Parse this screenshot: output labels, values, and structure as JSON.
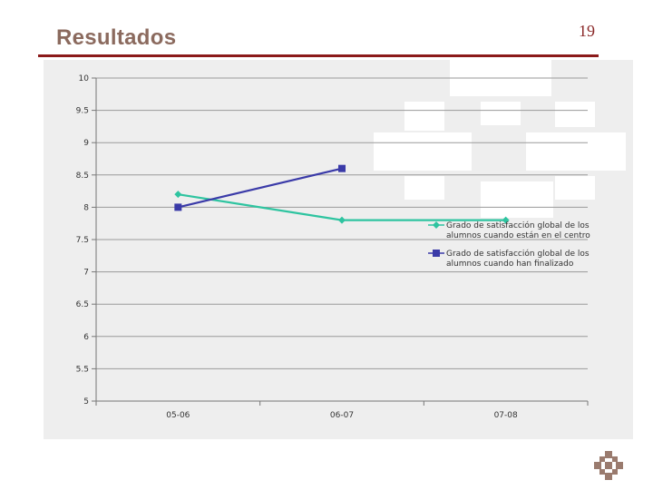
{
  "slide": {
    "title": "Resultados",
    "page_number": "19"
  },
  "colors": {
    "accent": "#8b1a1a",
    "series_1": "#2ec4a0",
    "series_2": "#3a3aa8"
  },
  "chart_data": {
    "type": "line",
    "categories": [
      "05-06",
      "06-07",
      "07-08"
    ],
    "ylim": [
      5,
      10
    ],
    "yticks": [
      "10",
      "9.5",
      "9",
      "8.5",
      "8",
      "7.5",
      "7",
      "6.5",
      "6",
      "5.5",
      "5"
    ],
    "grid": true,
    "legend_position": "right",
    "series": [
      {
        "name": "Grado de satisfacción global de los alumnos cuando están en el centro",
        "legend_lines": [
          "Grado de satisfacción global de los",
          "alumnos cuando están en el centro"
        ],
        "values": [
          8.2,
          7.8,
          7.8
        ],
        "marker": "diamond",
        "color": "#2ec4a0"
      },
      {
        "name": "Grado de satisfacción global de los alumnos cuando han finalizado",
        "legend_lines": [
          "Grado de satisfacción global de los",
          "alumnos cuando han finalizado"
        ],
        "values": [
          8.0,
          8.6,
          null
        ],
        "marker": "square",
        "color": "#3a3aa8"
      }
    ]
  }
}
